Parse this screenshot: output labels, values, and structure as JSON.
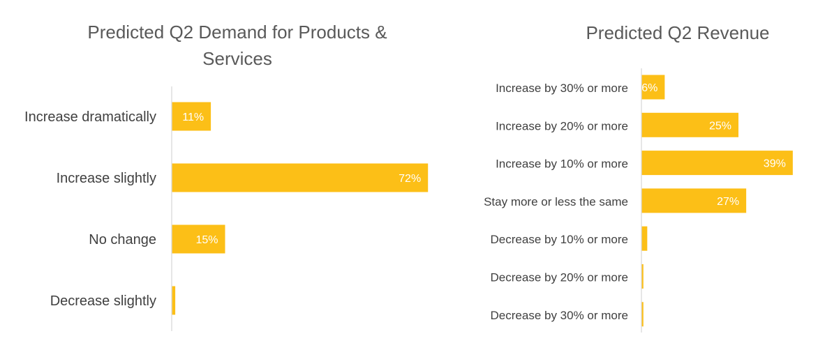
{
  "accent_color": "#FCBF17",
  "chart_data": [
    {
      "type": "bar",
      "orientation": "horizontal",
      "title": "Predicted Q2 Demand for Products & Services",
      "title_lines": [
        "Predicted Q2 Demand for Products &",
        "Services"
      ],
      "categories": [
        "Increase dramatically",
        "Increase slightly",
        "No change",
        "Decrease slightly"
      ],
      "values": [
        11,
        72,
        15,
        1
      ],
      "data_labels": [
        "11%",
        "72%",
        "15%",
        ""
      ],
      "value_unit": "%",
      "xlim": [
        0,
        78
      ],
      "grid": false,
      "legend": "none"
    },
    {
      "type": "bar",
      "orientation": "horizontal",
      "title": "Predicted Q2 Revenue",
      "title_lines": [
        "Predicted Q2 Revenue"
      ],
      "categories": [
        "Increase by 30% or more",
        "Increase by 20% or more",
        "Increase by 10% or more",
        "Stay more or less the same",
        "Decrease by 10% or more",
        "Decrease by 20% or more",
        "Decrease by 30% or more"
      ],
      "values": [
        6,
        25,
        39,
        27,
        1.5,
        0.5,
        0.5
      ],
      "data_labels": [
        "6%",
        "25%",
        "39%",
        "27%",
        "",
        "",
        ""
      ],
      "value_unit": "%",
      "xlim": [
        0,
        42
      ],
      "grid": false,
      "legend": "none"
    }
  ]
}
